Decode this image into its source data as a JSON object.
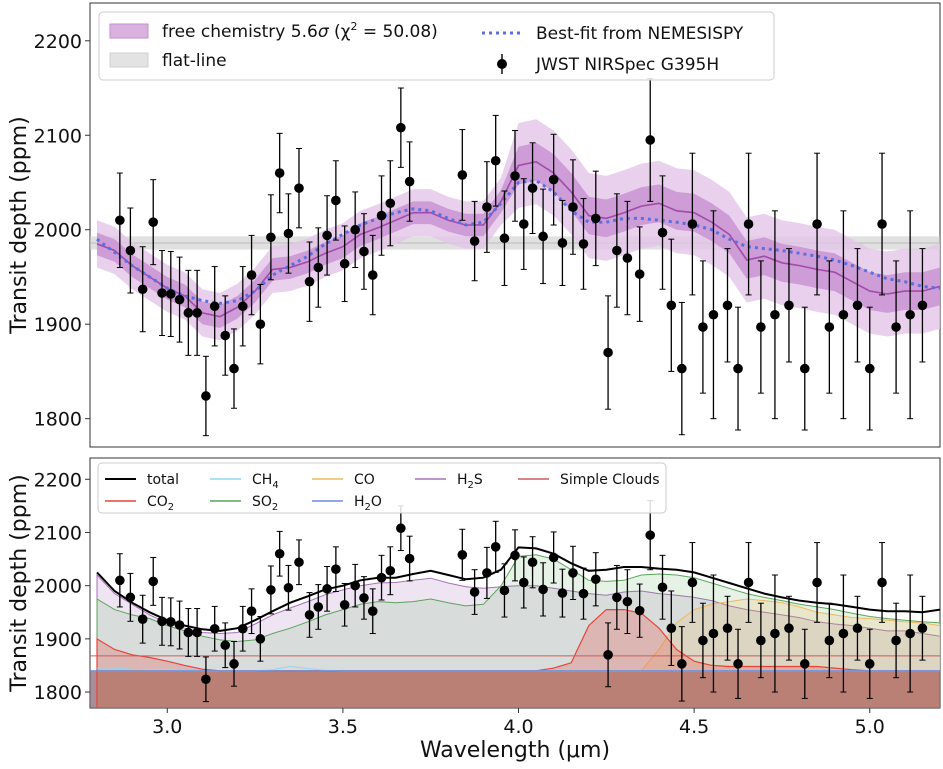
{
  "chart_data": [
    {
      "type": "line",
      "panel": "top",
      "ylabel": "Transit depth (ppm)",
      "xlim": [
        2.78,
        5.2
      ],
      "ylim": [
        1770,
        2240
      ],
      "yticks": [
        1800,
        1900,
        2000,
        2100,
        2200
      ],
      "legend": {
        "placement": "top",
        "free_chem_prefix": "free chemistry 5.6",
        "free_chem_sigma": "σ",
        "free_chem_chi": " (χ",
        "free_chem_sup": "2",
        "free_chem_suffix": " = 50.08)",
        "flat_line": "flat-line",
        "best_fit": "Best-fit from NEMESISPY",
        "jwst": "JWST NIRSpec G395H"
      },
      "flat_line": {
        "center": 1986,
        "half_width": 7
      },
      "data_points": {
        "x": [
          2.865,
          2.895,
          2.93,
          2.96,
          2.985,
          3.01,
          3.035,
          3.06,
          3.085,
          3.11,
          3.135,
          3.165,
          3.19,
          3.215,
          3.24,
          3.265,
          3.295,
          3.32,
          3.345,
          3.375,
          3.405,
          3.43,
          3.455,
          3.48,
          3.505,
          3.535,
          3.56,
          3.585,
          3.61,
          3.635,
          3.665,
          3.69,
          3.84,
          3.875,
          3.91,
          3.935,
          3.96,
          3.99,
          4.015,
          4.04,
          4.07,
          4.1,
          4.125,
          4.155,
          4.185,
          4.22,
          4.255,
          4.28,
          4.31,
          4.345,
          4.375,
          4.41,
          4.435,
          4.465,
          4.495,
          4.525,
          4.555,
          4.595,
          4.625,
          4.655,
          4.69,
          4.73,
          4.77,
          4.815,
          4.85,
          4.885,
          4.925,
          4.965,
          5.0,
          5.035,
          5.075,
          5.115,
          5.15
        ],
        "y": [
          2010,
          1978,
          1937,
          2008,
          1933,
          1932,
          1926,
          1912,
          1912,
          1824,
          1919,
          1888,
          1853,
          1919,
          1952,
          1900,
          1992,
          2060,
          1996,
          2044,
          1945,
          1960,
          1994,
          2031,
          1964,
          2000,
          1977,
          1952,
          2015,
          2028,
          2108,
          2051,
          2058,
          1988,
          2024,
          2073,
          1991,
          2057,
          2006,
          2044,
          1993,
          2053,
          1986,
          2024,
          1985,
          2012,
          1870,
          1978,
          1970,
          1953,
          2095,
          1997,
          1920,
          1853,
          2006,
          1897,
          1910,
          1920,
          1853,
          2006,
          1897,
          1910,
          1920,
          1853,
          2006,
          1897,
          1910,
          1920,
          1853,
          2006,
          1897,
          1910,
          1920
        ],
        "err": [
          50,
          45,
          45,
          45,
          45,
          45,
          45,
          45,
          45,
          42,
          42,
          42,
          42,
          42,
          42,
          42,
          45,
          42,
          42,
          42,
          42,
          42,
          42,
          42,
          40,
          40,
          40,
          42,
          42,
          45,
          42,
          42,
          48,
          42,
          48,
          48,
          50,
          48,
          48,
          48,
          50,
          48,
          45,
          50,
          48,
          50,
          60,
          60,
          60,
          50,
          65,
          60,
          70,
          70,
          75,
          70,
          110,
          60,
          65,
          75,
          70,
          110,
          60,
          65,
          75,
          70,
          110,
          60,
          65,
          75,
          70,
          110,
          60
        ]
      },
      "median": {
        "x": [
          2.8,
          2.85,
          2.9,
          2.95,
          3.0,
          3.05,
          3.1,
          3.15,
          3.2,
          3.25,
          3.3,
          3.35,
          3.4,
          3.45,
          3.5,
          3.55,
          3.6,
          3.65,
          3.7,
          3.75,
          3.8,
          3.85,
          3.9,
          3.95,
          4.0,
          4.05,
          4.1,
          4.15,
          4.2,
          4.25,
          4.3,
          4.35,
          4.4,
          4.45,
          4.5,
          4.55,
          4.6,
          4.65,
          4.7,
          4.75,
          4.8,
          4.85,
          4.9,
          4.95,
          5.0,
          5.05,
          5.1,
          5.15,
          5.2
        ],
        "y": [
          1985,
          1978,
          1962,
          1950,
          1938,
          1930,
          1912,
          1908,
          1918,
          1935,
          1958,
          1960,
          1966,
          1975,
          1982,
          1995,
          2002,
          2010,
          2018,
          2018,
          2010,
          2005,
          2005,
          2030,
          2068,
          2072,
          2060,
          2040,
          2015,
          2012,
          2018,
          2025,
          2028,
          2020,
          2018,
          2008,
          1995,
          1968,
          1972,
          1965,
          1962,
          1958,
          1955,
          1945,
          1935,
          1932,
          1935,
          1935,
          1940
        ],
        "inner_half_width": [
          12,
          12,
          12,
          12,
          12,
          12,
          12,
          12,
          12,
          12,
          12,
          12,
          12,
          12,
          12,
          12,
          12,
          12,
          12,
          12,
          12,
          12,
          12,
          12,
          20,
          20,
          20,
          20,
          20,
          20,
          20,
          20,
          20,
          20,
          20,
          20,
          20,
          20,
          20,
          20,
          20,
          20,
          20,
          20,
          20,
          20,
          20,
          20,
          20
        ],
        "outer_half_width": [
          25,
          25,
          25,
          25,
          25,
          25,
          25,
          25,
          25,
          25,
          25,
          25,
          25,
          25,
          25,
          25,
          25,
          25,
          25,
          25,
          25,
          25,
          25,
          25,
          45,
          45,
          45,
          45,
          45,
          45,
          45,
          45,
          45,
          45,
          45,
          45,
          45,
          45,
          45,
          45,
          45,
          45,
          45,
          45,
          45,
          45,
          45,
          45,
          45
        ]
      },
      "best_fit": {
        "x": [
          2.8,
          2.85,
          2.9,
          2.95,
          3.0,
          3.05,
          3.1,
          3.15,
          3.2,
          3.25,
          3.3,
          3.35,
          3.4,
          3.45,
          3.5,
          3.55,
          3.6,
          3.65,
          3.7,
          3.75,
          3.8,
          3.85,
          3.9,
          3.95,
          4.0,
          4.05,
          4.1,
          4.15,
          4.2,
          4.25,
          4.3,
          4.35,
          4.4,
          4.45,
          4.5,
          4.55,
          4.6,
          4.65,
          4.7,
          4.75,
          4.8,
          4.85,
          4.9,
          4.95,
          5.0,
          5.05,
          5.1,
          5.15,
          5.2
        ],
        "y": [
          1990,
          1976,
          1962,
          1950,
          1938,
          1930,
          1925,
          1922,
          1925,
          1935,
          1952,
          1962,
          1972,
          1985,
          1995,
          2005,
          2012,
          2018,
          2022,
          2020,
          2012,
          2005,
          2008,
          2028,
          2050,
          2052,
          2040,
          2020,
          2008,
          2008,
          2012,
          2012,
          2010,
          2008,
          2005,
          2000,
          1990,
          1982,
          1980,
          1978,
          1975,
          1972,
          1968,
          1962,
          1955,
          1948,
          1945,
          1940,
          1938
        ]
      },
      "colors": {
        "median": "#a04ca8",
        "band_inner": "#c78ecf",
        "band_outer": "#e4c5ea",
        "best_fit": "#5b6fe0",
        "flat": "#cccccc",
        "points": "#000000"
      }
    },
    {
      "type": "area",
      "panel": "bottom",
      "xlabel": "Wavelength (μm)",
      "ylabel": "Transit depth (ppm)",
      "xlim": [
        2.78,
        5.2
      ],
      "ylim": [
        1770,
        2240
      ],
      "xticks": [
        3.0,
        3.5,
        4.0,
        4.5,
        5.0
      ],
      "xtick_labels": [
        "3.0",
        "3.5",
        "4.0",
        "4.5",
        "5.0"
      ],
      "yticks": [
        1800,
        1900,
        2000,
        2100,
        2200
      ],
      "legend": {
        "placement": "top",
        "total": "total",
        "co2_a": "CO",
        "co2_b": "2",
        "ch4_a": "CH",
        "ch4_b": "4",
        "so2_a": "SO",
        "so2_b": "2",
        "co": "CO",
        "h2o_a": "H",
        "h2o_b": "2",
        "h2o_c": "O",
        "h2s_a": "H",
        "h2s_b": "2",
        "h2s_c": "S",
        "clouds": "Simple Clouds"
      },
      "colors": {
        "total": "#000000",
        "co2": "#e8433a",
        "ch4": "#8fd7ee",
        "so2": "#5aa55a",
        "co": "#f0b860",
        "h2o": "#6a8ae0",
        "h2s": "#a870b8",
        "clouds": "#cc5c5c"
      },
      "x": [
        2.8,
        2.85,
        2.9,
        2.95,
        3.0,
        3.05,
        3.1,
        3.15,
        3.2,
        3.25,
        3.3,
        3.35,
        3.4,
        3.45,
        3.5,
        3.55,
        3.6,
        3.65,
        3.7,
        3.75,
        3.8,
        3.85,
        3.9,
        3.95,
        4.0,
        4.05,
        4.1,
        4.15,
        4.2,
        4.25,
        4.3,
        4.35,
        4.4,
        4.45,
        4.5,
        4.55,
        4.6,
        4.65,
        4.7,
        4.75,
        4.8,
        4.85,
        4.9,
        4.95,
        5.0,
        5.05,
        5.1,
        5.15,
        5.2
      ],
      "total": [
        2025,
        1990,
        1968,
        1950,
        1935,
        1925,
        1918,
        1915,
        1920,
        1935,
        1952,
        1968,
        1980,
        1993,
        2000,
        2010,
        2015,
        2015,
        2022,
        2028,
        2020,
        2012,
        2015,
        2030,
        2072,
        2070,
        2060,
        2042,
        2028,
        2030,
        2035,
        2035,
        2032,
        2030,
        2025,
        2015,
        2005,
        1995,
        1985,
        1978,
        1972,
        1968,
        1965,
        1960,
        1955,
        1952,
        1952,
        1950,
        1955
      ],
      "h2s": [
        2020,
        1985,
        1965,
        1945,
        1930,
        1920,
        1912,
        1910,
        1912,
        1928,
        1945,
        1958,
        1970,
        1983,
        1992,
        2000,
        2005,
        2006,
        2010,
        2014,
        2005,
        1998,
        1995,
        1998,
        2000,
        2000,
        1995,
        1990,
        1985,
        1982,
        1988,
        1990,
        1985,
        1982,
        1978,
        1972,
        1962,
        1955,
        1950,
        1945,
        1940,
        1932,
        1928,
        1925,
        1920,
        1915,
        1915,
        1910,
        1905
      ],
      "so2": [
        1975,
        1955,
        1945,
        1938,
        1925,
        1915,
        1905,
        1898,
        1895,
        1898,
        1910,
        1920,
        1932,
        1945,
        1955,
        1965,
        1970,
        1968,
        1970,
        1975,
        1968,
        1962,
        1965,
        2000,
        2055,
        2058,
        2050,
        2030,
        2010,
        2008,
        2010,
        2020,
        2022,
        2020,
        2015,
        2005,
        1995,
        1985,
        1978,
        1972,
        1965,
        1960,
        1955,
        1948,
        1942,
        1938,
        1935,
        1932,
        1930
      ],
      "co": [
        1840,
        1840,
        1840,
        1840,
        1840,
        1840,
        1840,
        1840,
        1840,
        1840,
        1840,
        1840,
        1840,
        1840,
        1840,
        1840,
        1840,
        1840,
        1840,
        1840,
        1840,
        1840,
        1840,
        1840,
        1840,
        1840,
        1840,
        1840,
        1840,
        1840,
        1840,
        1840,
        1880,
        1930,
        1955,
        1965,
        1970,
        1975,
        1972,
        1968,
        1960,
        1950,
        1945,
        1940,
        1938,
        1935,
        1932,
        1930,
        1925
      ],
      "co2": [
        1900,
        1880,
        1870,
        1865,
        1858,
        1850,
        1843,
        1840,
        1840,
        1840,
        1840,
        1840,
        1840,
        1840,
        1840,
        1840,
        1840,
        1840,
        1840,
        1840,
        1840,
        1840,
        1840,
        1840,
        1840,
        1840,
        1845,
        1855,
        1925,
        1955,
        1955,
        1948,
        1920,
        1880,
        1858,
        1850,
        1848,
        1848,
        1848,
        1848,
        1848,
        1848,
        1845,
        1842,
        1840,
        1840,
        1840,
        1840,
        1840
      ],
      "ch4": [
        1845,
        1845,
        1843,
        1842,
        1842,
        1841,
        1840,
        1840,
        1840,
        1840,
        1842,
        1848,
        1844,
        1841,
        1840,
        1840,
        1840,
        1840,
        1840,
        1840,
        1840,
        1840,
        1840,
        1840,
        1840,
        1840,
        1840,
        1840,
        1840,
        1840,
        1840,
        1840,
        1840,
        1840,
        1840,
        1840,
        1840,
        1840,
        1840,
        1840,
        1840,
        1840,
        1840,
        1840,
        1840,
        1840,
        1840,
        1840,
        1840
      ],
      "h2o_level": 1840,
      "cloud_level": 1868
    }
  ]
}
